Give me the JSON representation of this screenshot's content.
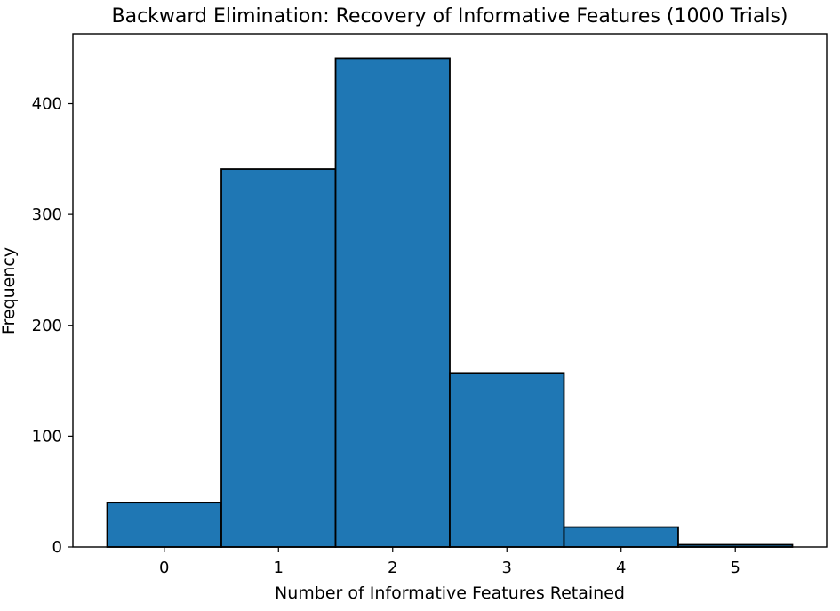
{
  "chart_data": {
    "type": "bar",
    "title": "Backward Elimination: Recovery of Informative Features (1000 Trials)",
    "xlabel": "Number of Informative Features Retained",
    "ylabel": "Frequency",
    "categories": [
      "0",
      "1",
      "2",
      "3",
      "4",
      "5"
    ],
    "x": [
      0,
      1,
      2,
      3,
      4,
      5
    ],
    "values": [
      40,
      341,
      441,
      157,
      18,
      2
    ],
    "xlim": [
      -0.8,
      5.8
    ],
    "ylim": [
      0,
      463
    ],
    "yticks": [
      0,
      100,
      200,
      300,
      400
    ],
    "grid": false,
    "bar_color": "#1f77b4",
    "edge_color": "#000000"
  }
}
